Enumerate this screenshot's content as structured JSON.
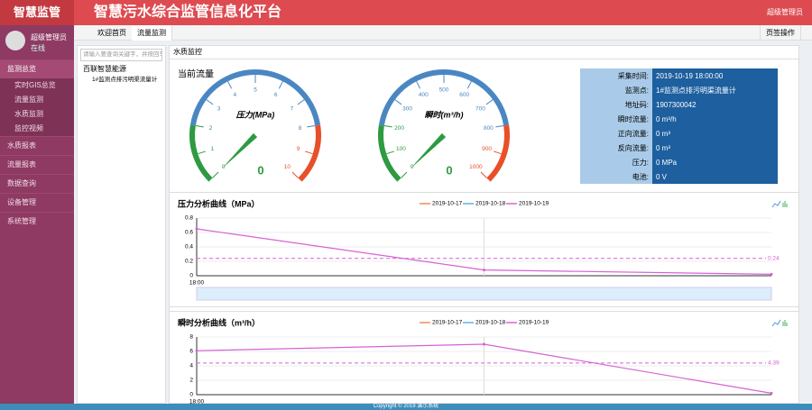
{
  "header": {
    "logo": "智慧监管",
    "title": "智慧污水综合监管信息化平台",
    "user": "超级管理员"
  },
  "sidebar": {
    "user": "超级管理员",
    "status": "在线",
    "menu": [
      {
        "label": "监测总览",
        "children": [
          "实时GIS总览",
          "流量监测",
          "水质监测",
          "监控视频"
        ]
      },
      {
        "label": "水质报表"
      },
      {
        "label": "流量报表"
      },
      {
        "label": "数据查询"
      },
      {
        "label": "设备管理"
      },
      {
        "label": "系统管理"
      }
    ]
  },
  "tabs": {
    "items": [
      "欢迎首页",
      "流量监测"
    ],
    "actions": "页签操作"
  },
  "tree": {
    "placeholder": "请输入要查询关键字，并按回车",
    "root": "百联智慧能源",
    "children": [
      "1#监测点排污明渠流量计"
    ]
  },
  "panel": {
    "title": "水质监控",
    "section": "当前流量"
  },
  "gauges": [
    {
      "type": "gauge",
      "name": "压力(MPa)",
      "value": 0,
      "min": 0,
      "max": 10,
      "ticks": [
        0,
        1,
        2,
        3,
        4,
        5,
        6,
        7,
        8,
        9,
        10
      ],
      "colors": [
        "#2e9a41",
        "#4a87c2",
        "#e8502a"
      ]
    },
    {
      "type": "gauge",
      "name": "瞬时(m³/h)",
      "value": 0,
      "min": 0,
      "max": 1000,
      "ticks": [
        0,
        100,
        200,
        300,
        400,
        500,
        600,
        700,
        800,
        900,
        1000
      ],
      "colors": [
        "#2e9a41",
        "#4a87c2",
        "#e8502a"
      ]
    }
  ],
  "info": [
    [
      "采集时间:",
      "2019-10-19 18:00:00"
    ],
    [
      "监测点:",
      "1#监测点排污明渠流量计"
    ],
    [
      "地址码:",
      "1907300042"
    ],
    [
      "瞬时流量:",
      "0 m³/h"
    ],
    [
      "正向流量:",
      "0 m³"
    ],
    [
      "反向流量:",
      "0 m³"
    ],
    [
      "压力:",
      "0 MPa"
    ],
    [
      "电池:",
      "0 V"
    ]
  ],
  "charts": [
    {
      "type": "line",
      "title": "压力分析曲线（MPa）",
      "categories": [
        "18:00",
        null,
        null
      ],
      "series": [
        {
          "name": "2019-10-17",
          "color": "#f08c5a",
          "values": [
            null,
            null,
            null
          ]
        },
        {
          "name": "2019-10-18",
          "color": "#5ab1ef",
          "values": [
            null,
            null,
            null
          ]
        },
        {
          "name": "2019-10-19",
          "color": "#d562d4",
          "values": [
            0.65,
            0.08,
            0.02
          ]
        }
      ],
      "ylim": [
        0,
        0.8
      ],
      "yticks": [
        0,
        0.2,
        0.4,
        0.6,
        0.8
      ],
      "markline": 0.24,
      "grid": true
    },
    {
      "type": "line",
      "title": "瞬时分析曲线（m³/h）",
      "categories": [
        "18:00",
        null,
        null
      ],
      "series": [
        {
          "name": "2019-10-17",
          "color": "#f08c5a",
          "values": [
            null,
            null,
            null
          ]
        },
        {
          "name": "2019-10-18",
          "color": "#5ab1ef",
          "values": [
            null,
            null,
            null
          ]
        },
        {
          "name": "2019-10-19",
          "color": "#d562d4",
          "values": [
            6.1,
            7,
            0.2
          ]
        }
      ],
      "ylim": [
        0,
        8
      ],
      "yticks": [
        0,
        2,
        4,
        6,
        8
      ],
      "markline": 4.39,
      "grid": true
    }
  ],
  "footer": "Copyright © 2019 演示系统"
}
